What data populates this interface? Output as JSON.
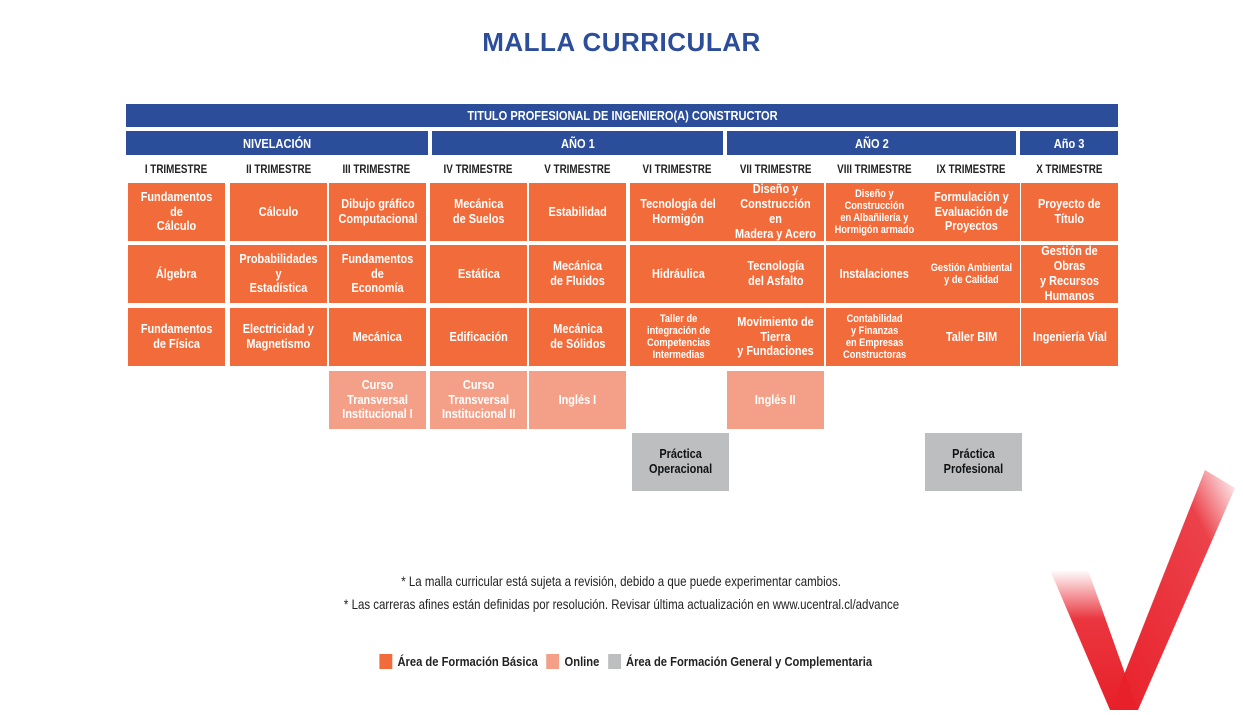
{
  "title": "MALLA CURRICULAR",
  "header": "TITULO PROFESIONAL DE INGENIERO(A) CONSTRUCTOR",
  "periods": {
    "nivelacion": "NIVELACIÓN",
    "ano1": "AÑO 1",
    "ano2": "AÑO 2",
    "ano3": "Año 3"
  },
  "trimesters": [
    "I TRIMESTRE",
    "II TRIMESTRE",
    "III TRIMESTRE",
    "IV TRIMESTRE",
    "V TRIMESTRE",
    "VI TRIMESTRE",
    "VII TRIMESTRE",
    "VIII TRIMESTRE",
    "IX TRIMESTRE",
    "X TRIMESTRE"
  ],
  "courses": {
    "r1": [
      "Fundamentos de\nCálculo",
      "Cálculo",
      "Dibujo gráfico\nComputacional",
      "Mecánica\nde Suelos",
      "Estabilidad",
      "Tecnología del\nHormigón",
      "Diseño y\nConstrucción en\nMadera y Acero",
      "Diseño y\nConstrucción\nen Albañilería y\nHormigón armado",
      "Formulación y\nEvaluación de\nProyectos",
      "Proyecto de\nTítulo"
    ],
    "r2": [
      "Álgebra",
      "Probabilidades y\nEstadística",
      "Fundamentos de\nEconomía",
      "Estática",
      "Mecánica\nde Fluidos",
      "Hidráulica",
      "Tecnología\ndel Asfalto",
      "Instalaciones",
      "Gestión Ambiental\ny de Calidad",
      "Gestión de Obras\ny Recursos\nHumanos"
    ],
    "r3": [
      "Fundamentos\nde Física",
      "Electricidad y\nMagnetismo",
      "Mecánica",
      "Edificación",
      "Mecánica\nde Sólidos",
      "Taller de\nintegración de\nCompetencias\nIntermedias",
      "Movimiento de\nTierra\ny Fundaciones",
      "Contabilidad\ny Finanzas\nen Empresas\nConstructoras",
      "Taller BIM",
      "Ingeniería Vial"
    ],
    "online": [
      "Curso Transversal\nInstitucional I",
      "Curso\nTransversal\nInstitucional II",
      "Inglés I",
      "Inglés II"
    ],
    "general": [
      "Práctica\nOperacional",
      "Práctica\nProfesional"
    ]
  },
  "notes": [
    "* La  malla curricular está sujeta a revisión, debido a que puede experimentar cambios.",
    "* Las carreras afines están definidas por resolución. Revisar última actualización en www.ucentral.cl/advance"
  ],
  "legend": {
    "basic": "Área de Formación Básica",
    "online": "Online",
    "general": "Área de Formación General y Complementaria"
  },
  "colors": {
    "blue": "#2b4d9a",
    "basic": "#f26b3a",
    "online": "#f4a088",
    "general": "#bdbec0",
    "check": "#e8202a"
  }
}
